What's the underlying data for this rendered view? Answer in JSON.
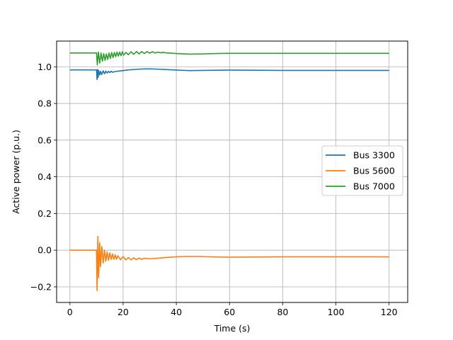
{
  "chart_data": {
    "type": "line",
    "xlabel": "Time (s)",
    "ylabel": "Active power (p.u.)",
    "xlim": [
      -5,
      127
    ],
    "ylim": [
      -0.285,
      1.14
    ],
    "xticks": [
      0,
      20,
      40,
      60,
      80,
      100,
      120
    ],
    "xtick_labels": [
      "0",
      "20",
      "40",
      "60",
      "80",
      "100",
      "120"
    ],
    "yticks": [
      -0.2,
      0.0,
      0.2,
      0.4,
      0.6,
      0.8,
      1.0
    ],
    "ytick_labels": [
      "−0.2",
      "0.0",
      "0.2",
      "0.4",
      "0.6",
      "0.8",
      "1.0"
    ],
    "grid": true,
    "legend_position": "center-right",
    "series": [
      {
        "name": "Bus 3300",
        "color": "#1f77b4",
        "x": [
          0,
          10,
          10.2,
          10.4,
          10.6,
          10.8,
          11.2,
          11.5,
          12,
          12.5,
          13,
          13.5,
          14,
          14.5,
          15,
          15.5,
          16,
          17,
          18,
          20,
          22,
          25,
          28,
          30,
          33,
          36,
          40,
          45,
          50,
          55,
          60,
          70,
          80,
          90,
          100,
          110,
          120
        ],
        "y": [
          0.983,
          0.983,
          0.93,
          0.985,
          0.942,
          0.98,
          0.955,
          0.975,
          0.958,
          0.978,
          0.962,
          0.976,
          0.966,
          0.975,
          0.968,
          0.976,
          0.97,
          0.974,
          0.976,
          0.979,
          0.983,
          0.986,
          0.988,
          0.988,
          0.987,
          0.985,
          0.982,
          0.979,
          0.98,
          0.981,
          0.982,
          0.981,
          0.98,
          0.98,
          0.98,
          0.98,
          0.98
        ]
      },
      {
        "name": "Bus 5600",
        "color": "#ff7f0e",
        "x": [
          0,
          10,
          10.2,
          10.5,
          10.8,
          11.2,
          11.5,
          12,
          12.5,
          13,
          13.5,
          14,
          14.5,
          15,
          15.5,
          16,
          16.5,
          17,
          17.5,
          18,
          19,
          20,
          21,
          22,
          23,
          24,
          25,
          26,
          27,
          28,
          30,
          33,
          36,
          40,
          45,
          50,
          55,
          60,
          70,
          80,
          90,
          100,
          110,
          120
        ],
        "y": [
          0.0,
          0.0,
          -0.22,
          0.075,
          -0.15,
          0.04,
          -0.09,
          0.02,
          -0.07,
          0.0,
          -0.06,
          -0.01,
          -0.055,
          -0.015,
          -0.05,
          -0.02,
          -0.05,
          -0.025,
          -0.05,
          -0.03,
          -0.052,
          -0.035,
          -0.053,
          -0.04,
          -0.053,
          -0.042,
          -0.052,
          -0.043,
          -0.05,
          -0.044,
          -0.047,
          -0.044,
          -0.04,
          -0.036,
          -0.034,
          -0.035,
          -0.037,
          -0.038,
          -0.037,
          -0.036,
          -0.036,
          -0.036,
          -0.036,
          -0.036
        ]
      },
      {
        "name": "Bus 7000",
        "color": "#2ca02c",
        "x": [
          0,
          10,
          10.3,
          10.7,
          11.2,
          11.7,
          12.2,
          12.7,
          13.2,
          13.7,
          14.2,
          14.7,
          15.2,
          15.7,
          16.2,
          16.7,
          17.2,
          17.7,
          18.2,
          18.7,
          19.2,
          19.7,
          20.2,
          21,
          22,
          23,
          24,
          25,
          26,
          27,
          28,
          29,
          30,
          31,
          32,
          33,
          34,
          35,
          36,
          38,
          40,
          45,
          50,
          55,
          60,
          70,
          80,
          90,
          100,
          110,
          120
        ],
        "y": [
          1.075,
          1.075,
          1.01,
          1.08,
          1.02,
          1.075,
          1.03,
          1.072,
          1.035,
          1.07,
          1.04,
          1.075,
          1.045,
          1.078,
          1.05,
          1.078,
          1.055,
          1.08,
          1.058,
          1.08,
          1.06,
          1.082,
          1.063,
          1.078,
          1.066,
          1.082,
          1.068,
          1.083,
          1.07,
          1.083,
          1.072,
          1.083,
          1.074,
          1.082,
          1.075,
          1.08,
          1.076,
          1.079,
          1.076,
          1.074,
          1.072,
          1.069,
          1.07,
          1.072,
          1.073,
          1.073,
          1.073,
          1.073,
          1.073,
          1.073,
          1.073
        ]
      }
    ]
  }
}
